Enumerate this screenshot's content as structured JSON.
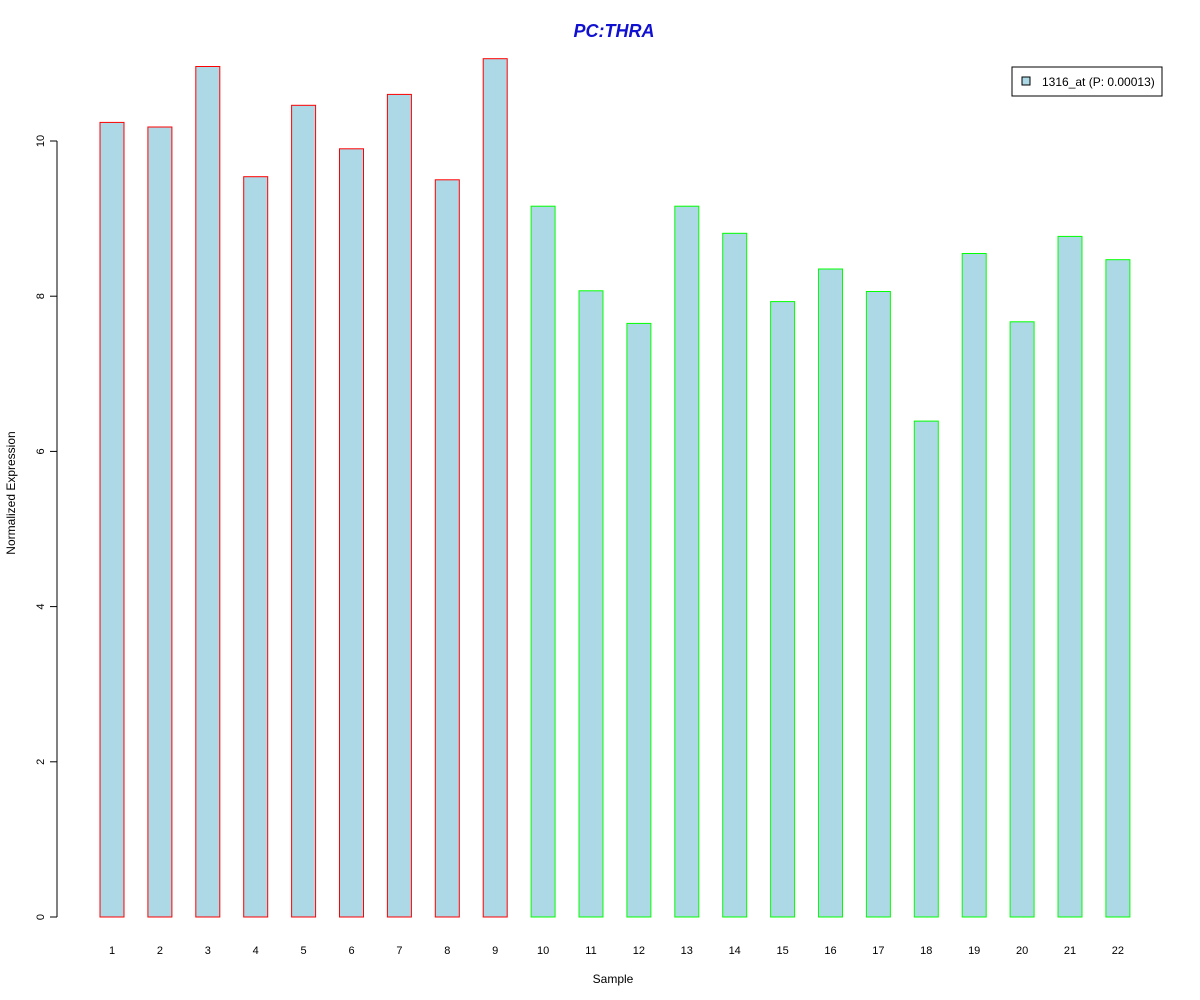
{
  "chart_data": {
    "type": "bar",
    "title": "PC:THRA",
    "xlabel": "Sample",
    "ylabel": "Normalized Expression",
    "ylim": [
      0,
      11.1
    ],
    "yticks": [
      0,
      2,
      4,
      6,
      8,
      10
    ],
    "grid": false,
    "categories": [
      "1",
      "2",
      "3",
      "4",
      "5",
      "6",
      "7",
      "8",
      "9",
      "10",
      "11",
      "12",
      "13",
      "14",
      "15",
      "16",
      "17",
      "18",
      "19",
      "20",
      "21",
      "22"
    ],
    "series": [
      {
        "name": "1316_at (P: 0.00013)",
        "values": [
          10.24,
          10.18,
          10.96,
          9.54,
          10.46,
          9.9,
          10.6,
          9.5,
          11.06,
          9.16,
          8.07,
          7.65,
          9.16,
          8.81,
          7.93,
          8.35,
          8.06,
          6.39,
          8.55,
          7.67,
          8.77,
          8.47
        ]
      }
    ],
    "group_sizes": [
      9,
      13
    ],
    "colors": {
      "fill": "#add8e6",
      "group1_border": "#ff0000",
      "group2_border": "#00ff00",
      "title": "#1010d0"
    },
    "legend": {
      "label": "1316_at (P: 0.00013)",
      "position": "top-right"
    }
  }
}
